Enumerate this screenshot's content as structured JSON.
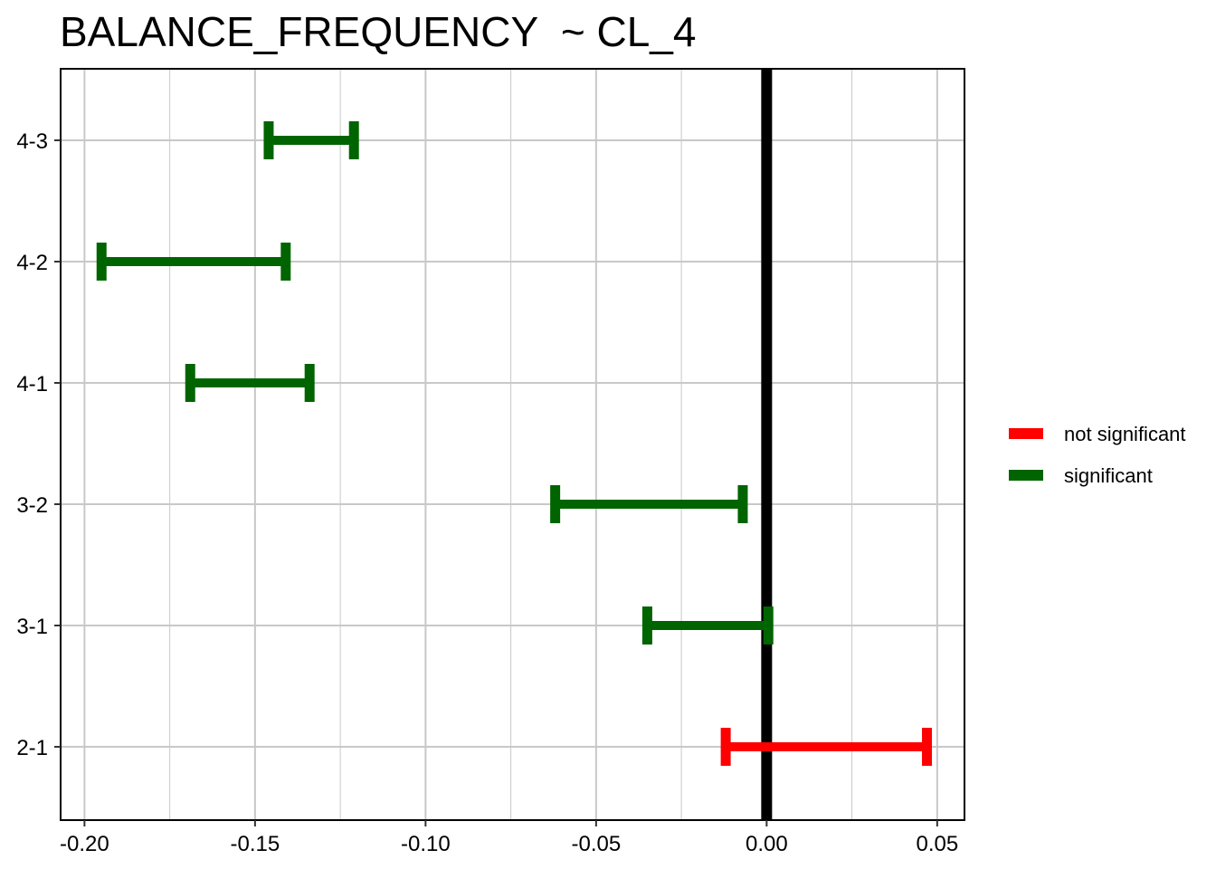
{
  "chart_data": {
    "type": "errorbar",
    "title": "BALANCE_FREQUENCY  ~ CL_4",
    "xlabel": "",
    "ylabel": "",
    "xlim": [
      -0.207,
      0.058
    ],
    "x_ticks": [
      -0.2,
      -0.15,
      -0.1,
      -0.05,
      0.0,
      0.05
    ],
    "x_tick_labels": [
      "-0.20",
      "-0.15",
      "-0.10",
      "-0.05",
      "0.00",
      "0.05"
    ],
    "categories": [
      "4-3",
      "4-2",
      "4-1",
      "3-2",
      "3-1",
      "2-1"
    ],
    "intervals": [
      {
        "label": "4-3",
        "low": -0.146,
        "high": -0.121,
        "group": "significant"
      },
      {
        "label": "4-2",
        "low": -0.195,
        "high": -0.141,
        "group": "significant"
      },
      {
        "label": "4-1",
        "low": -0.169,
        "high": -0.134,
        "group": "significant"
      },
      {
        "label": "3-2",
        "low": -0.062,
        "high": -0.007,
        "group": "significant"
      },
      {
        "label": "3-1",
        "low": -0.035,
        "high": 0.0005,
        "group": "significant"
      },
      {
        "label": "2-1",
        "low": -0.012,
        "high": 0.047,
        "group": "not significant"
      }
    ],
    "reference_line": 0.0,
    "grid": true,
    "legend": {
      "placement": "right",
      "entries": [
        {
          "name": "not significant",
          "color": "#ff0000"
        },
        {
          "name": "significant",
          "color": "#006400"
        }
      ]
    },
    "colors": {
      "significant": "#006400",
      "not significant": "#ff0000",
      "reference": "#000000",
      "grid": "#c8c8c8"
    }
  }
}
